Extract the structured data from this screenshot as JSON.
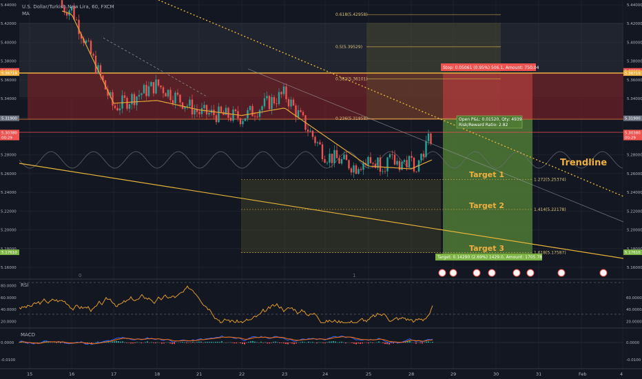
{
  "symbol": {
    "title": "U.S. Dollar/Turkish New Lira, 60, FXCM",
    "indicator_label": "MA"
  },
  "colors": {
    "background": "#131722",
    "up": "#26a69a",
    "down": "#ef5350",
    "ma": "#e2a83a",
    "rsi": "#e39b2a",
    "grid": "#2a2e39",
    "text": "#b2b5be",
    "stop_zone": "#6b1f26",
    "target_zone": "#3f5f2e",
    "fib": "#c8a24a",
    "resistance": "#f0b040",
    "trendline": "#e8b43a"
  },
  "price_axis": {
    "ticks": [
      "5.44000",
      "5.42000",
      "5.40000",
      "5.38000",
      "5.36000",
      "5.34000",
      "5.32000",
      "5.30000",
      "5.28000",
      "5.26000",
      "5.24000",
      "5.22000",
      "5.20000",
      "5.18000",
      "5.16000"
    ],
    "badges": [
      {
        "text": "5.36961",
        "color": "#ef5350",
        "value": 5.36961
      },
      {
        "text": "5.36719",
        "color": "#f0b040",
        "value": 5.36719
      },
      {
        "text": "5.31900",
        "color": "#6b7280",
        "value": 5.319
      },
      {
        "text": "5.30380",
        "color": "#ef5350",
        "value": 5.3038
      },
      {
        "text": "00:29",
        "color": "#ef5350",
        "value": 5.2985
      },
      {
        "text": "5.17610",
        "color": "#7cb342",
        "value": 5.1761
      }
    ]
  },
  "time_axis": {
    "labels": [
      "15",
      "16",
      "17",
      "18",
      "21",
      "22",
      "23",
      "24",
      "25",
      "28",
      "29",
      "30",
      "31",
      "Feb",
      "4"
    ]
  },
  "fib_levels": [
    {
      "label": "0.618(5.42958)",
      "price": 5.42958
    },
    {
      "label": "0.5(5.39529)",
      "price": 5.39529
    },
    {
      "label": "0.382(5.36101)",
      "price": 5.36101
    },
    {
      "label": "0.236(5.31858)",
      "price": 5.31858
    }
  ],
  "fib_ext_levels": [
    {
      "label": "1.272(5.25374)",
      "price": 5.25374
    },
    {
      "label": "1.414(5.22178)",
      "price": 5.22178
    },
    {
      "label": "1.618(5.17587)",
      "price": 5.17587
    }
  ],
  "annotations": {
    "trendline_label": "Trendline",
    "target1": "Target 1",
    "target2": "Target 2",
    "target3": "Target 3",
    "stop_label": "Stop: 0.05061 (0.95%) 506.1, Amount: 750.04",
    "open_pnl": "Open P&L: 0.01520, Qty: 4939",
    "risk_reward": "Risk/Reward Ratio: 2.82",
    "target_label": "Target: 0.14290 (2.69%) 1429.0, Amount: 1705.78",
    "marker_0": "0",
    "marker_1": "1"
  },
  "rsi_panel": {
    "label": "RSI",
    "ticks": [
      "80.0000",
      "60.0000",
      "40.0000",
      "20.0000"
    ],
    "right_ticks": [
      "60.0000",
      "40.0000",
      "20.0000"
    ]
  },
  "macd_panel": {
    "label": "MACD",
    "ticks": [
      "0.0000",
      "-0.0100"
    ],
    "right_ticks": [
      "0.0000",
      "-0.0100"
    ]
  },
  "chart_data": {
    "type": "line",
    "title": "U.S. Dollar/Turkish New Lira, 60, FXCM",
    "x": [
      "15",
      "16",
      "17",
      "18",
      "21",
      "22",
      "23",
      "24",
      "25",
      "28",
      "29"
    ],
    "series": [
      {
        "name": "MA",
        "values": [
          5.445,
          5.43,
          5.335,
          5.338,
          5.328,
          5.322,
          5.33,
          5.3,
          5.268,
          5.265,
          5.275
        ]
      }
    ],
    "close": [
      5.445,
      5.435,
      5.33,
      5.355,
      5.325,
      5.32,
      5.345,
      5.28,
      5.262,
      5.262,
      5.304
    ],
    "ylim": [
      5.155,
      5.445
    ]
  }
}
